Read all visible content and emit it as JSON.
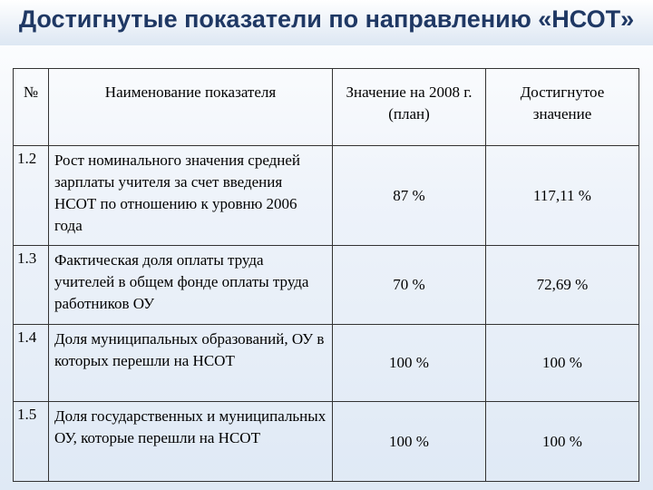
{
  "header": {
    "title": "Достигнутые показатели по направлению «НСОТ»"
  },
  "table": {
    "columns": [
      "№",
      "Наименование показателя",
      "Значение на 2008 г. (план)",
      "Достигнутое значение"
    ],
    "rows": [
      [
        "1.2",
        "Рост номинального значения средней зарплаты учителя за счет введения НСОТ по отношению к уровню 2006 года",
        "87 %",
        "117,11 %"
      ],
      [
        "1.3",
        "Фактическая доля оплаты труда учителей в общем фонде оплаты труда работников ОУ",
        "70 %",
        "72,69 %"
      ],
      [
        "1.4",
        "Доля муниципальных образований, ОУ в которых перешли на НСОТ",
        "100 %",
        "100 %"
      ],
      [
        "1.5",
        "Доля государственных и муниципальных ОУ, которые перешли на НСОТ",
        "100 %",
        "100 %"
      ]
    ]
  }
}
